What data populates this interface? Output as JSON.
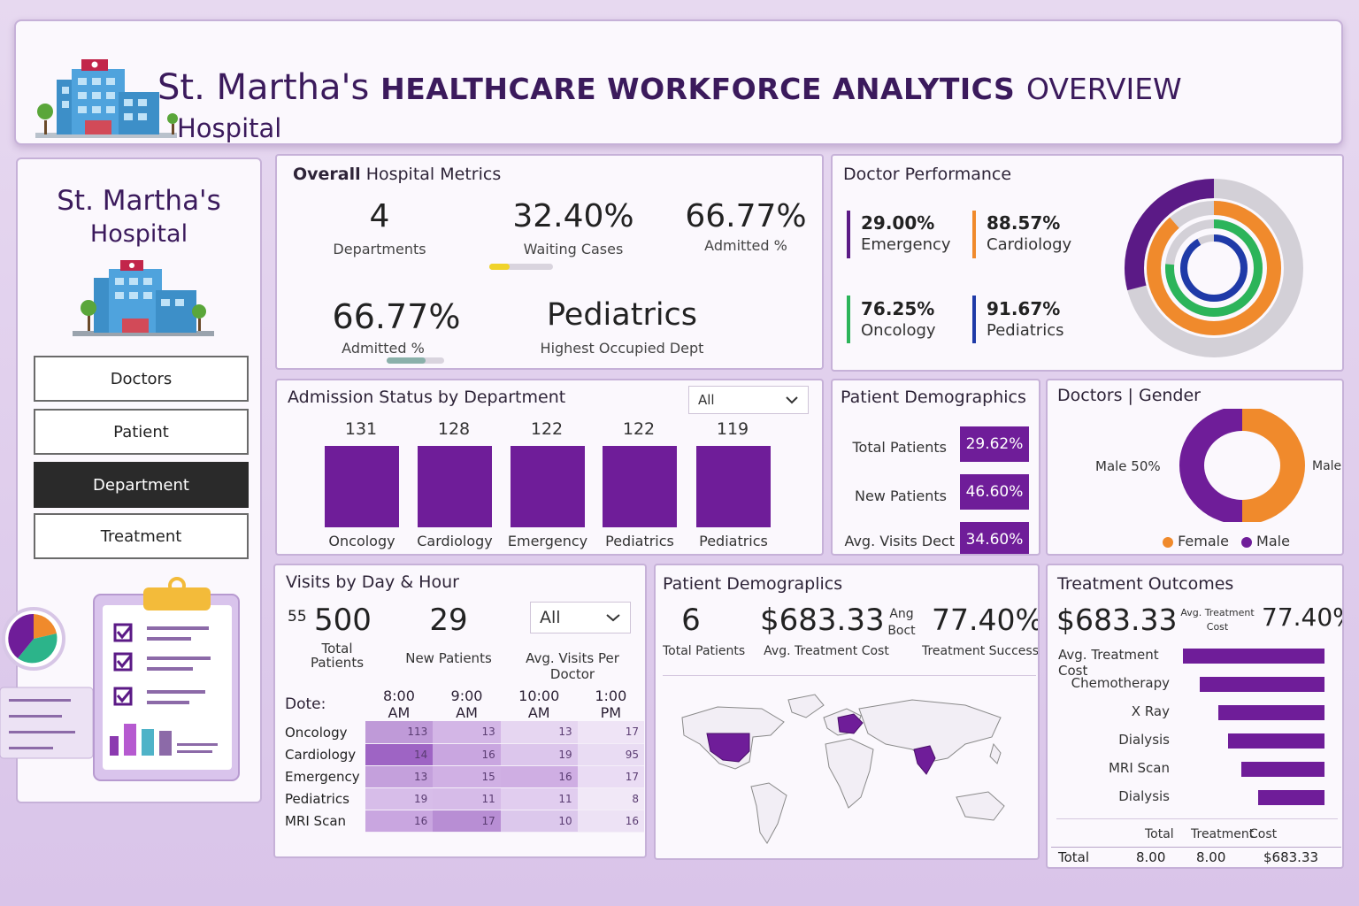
{
  "header": {
    "title_name": "St. Martha's",
    "title_upper": "HEALTHCARE WORKFORCE ANALYTICS",
    "title_tail": "OVERVIEW",
    "subtitle": "Hospital"
  },
  "sidebar": {
    "hospital_line1": "St. Martha's",
    "hospital_line2": "Hospital",
    "nav": [
      "Doctors",
      "Patient",
      "Department",
      "Treatment"
    ],
    "active": "Department"
  },
  "overall": {
    "title_bold": "Overall",
    "title_rest": "Hospital Metrics",
    "departments_value": "4",
    "departments_label": "Departments",
    "waiting_value": "32.40%",
    "waiting_label": "Waiting Cases",
    "waiting_progress": 0.32,
    "admitted_value": "66.77%",
    "admitted_label": "Admitted %",
    "admitted2_value": "66.77%",
    "admitted2_label": "Admitted %",
    "admitted2_progress": 0.67,
    "highest_value": "Pediatrics",
    "highest_label": "Highest Occupied Dept"
  },
  "doctor_performance": {
    "title": "Doctor Performance",
    "items": [
      {
        "value": "29.00%",
        "label": "Emergency",
        "color": "#5b1a86"
      },
      {
        "value": "88.57%",
        "label": "Cardiology",
        "color": "#f08a2c"
      },
      {
        "value": "76.25%",
        "label": "Oncology",
        "color": "#2cb45a"
      },
      {
        "value": "91.67%",
        "label": "Pediatrics",
        "color": "#1f3aa8"
      }
    ]
  },
  "admission": {
    "title": "Admission Status by Department",
    "filter": "All",
    "bars": [
      {
        "label": "Oncology",
        "value": "131"
      },
      {
        "label": "Cardiology",
        "value": "128"
      },
      {
        "label": "Emergency",
        "value": "122"
      },
      {
        "label": "Pediatrics",
        "value": "122"
      },
      {
        "label": "Pediatrics",
        "value": "119"
      }
    ]
  },
  "patient_demo": {
    "title": "Patient Demographics",
    "rows": [
      {
        "label": "Total Patients",
        "value": "29.62%"
      },
      {
        "label": "New Patients",
        "value": "46.60%"
      },
      {
        "label": "Avg. Visits Dect",
        "value": "34.60%"
      }
    ]
  },
  "gender": {
    "title": "Doctors | Gender",
    "left_label": "Male 50%",
    "right_label": "Male",
    "legend": [
      {
        "label": "Female",
        "color": "#f08a2c"
      },
      {
        "label": "Male",
        "color": "#6f1d99"
      }
    ],
    "female_share": 0.5
  },
  "visits": {
    "title": "Visits by Day & Hour",
    "total_small": "55",
    "total_value": "500",
    "total_label_1": "Total",
    "total_label_2": "Patients",
    "new_value": "29",
    "new_label": "New Patients",
    "filter": "All",
    "avg_label": "Avg. Visits Per Doctor",
    "table_header": "Dote:",
    "hours": [
      "8:00 AM",
      "9:00 AM",
      "10:00 AM",
      "1:00 PM"
    ],
    "rows": [
      {
        "label": "Oncology",
        "values": [
          "113",
          "13",
          "13",
          "17"
        ]
      },
      {
        "label": "Cardiology",
        "values": [
          "14",
          "16",
          "19",
          "95"
        ]
      },
      {
        "label": "Emergency",
        "values": [
          "13",
          "15",
          "16",
          "17"
        ]
      },
      {
        "label": "Pediatrics",
        "values": [
          "19",
          "11",
          "11",
          "8"
        ]
      },
      {
        "label": "MRI Scan",
        "values": [
          "16",
          "17",
          "10",
          "16"
        ]
      }
    ]
  },
  "patient_geo": {
    "title": "Patient Demograplics",
    "total_value": "6",
    "total_label": "Total Patients",
    "cost_value": "$683.33",
    "cost_label": "Avg. Treatment Cost",
    "small_1": "Ang",
    "small_2": "Boct",
    "success_value": "77.40%",
    "success_label": "Treatment Success"
  },
  "treatment": {
    "title": "Treatment Outcomes",
    "cost_value": "$683.33",
    "cost_small_1": "Avg. Treatment",
    "cost_small_2": "Cost",
    "success_value": "77.40%",
    "bars": [
      {
        "label": "Avg. Treatment Cost",
        "value": 1.0
      },
      {
        "label": "Chemotherapy",
        "value": 0.88
      },
      {
        "label": "X Ray",
        "value": 0.75
      },
      {
        "label": "Dialysis",
        "value": 0.68
      },
      {
        "label": "MRI Scan",
        "value": 0.59
      },
      {
        "label": "Dialysis",
        "value": 0.47
      }
    ],
    "footer_h1": "Total",
    "footer_h2": "Treatment",
    "footer_h3": "Cost",
    "footer_total_label": "Total",
    "footer_v1": "8.00",
    "footer_v2": "8.00",
    "footer_v3": "$683.33"
  }
}
